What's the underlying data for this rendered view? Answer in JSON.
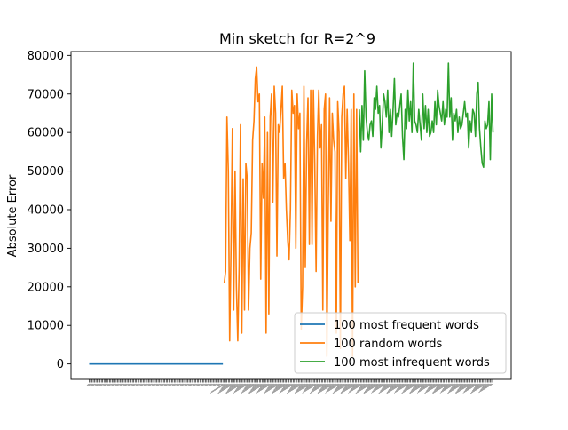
{
  "chart_data": {
    "type": "line",
    "title": "Min sketch for R=2^9",
    "xlabel": "",
    "ylabel": "Absolute Error",
    "ylim": [
      -4000,
      81000
    ],
    "yticks": [
      0,
      10000,
      20000,
      30000,
      40000,
      50000,
      60000,
      70000,
      80000
    ],
    "ytick_labels": [
      "0",
      "10000",
      "20000",
      "30000",
      "40000",
      "50000",
      "60000",
      "70000",
      "80000"
    ],
    "x_tick_labels_legible": false,
    "grid": false,
    "legend_position": "lower-right",
    "series": [
      {
        "name": "100 most frequent words",
        "color": "#1f77b4",
        "x_start": 0,
        "values": [
          0,
          0,
          0,
          0,
          0,
          0,
          0,
          0,
          0,
          0,
          0,
          0,
          0,
          0,
          0,
          0,
          0,
          0,
          0,
          0,
          0,
          0,
          0,
          0,
          0,
          0,
          0,
          0,
          0,
          0,
          0,
          0,
          0,
          0,
          0,
          0,
          0,
          0,
          0,
          0,
          0,
          0,
          0,
          0,
          0,
          0,
          0,
          0,
          0,
          0,
          0,
          0,
          0,
          0,
          0,
          0,
          0,
          0,
          0,
          0,
          0,
          0,
          0,
          0,
          0,
          0,
          0,
          0,
          0,
          0,
          0,
          0,
          0,
          0,
          0,
          0,
          0,
          0,
          0,
          0,
          0,
          0,
          0,
          0,
          0,
          0,
          0,
          0,
          0,
          0,
          0,
          0,
          0,
          0,
          0,
          0,
          0,
          0,
          0,
          0
        ]
      },
      {
        "name": "100 random words",
        "color": "#ff7f0e",
        "x_start": 100,
        "values": [
          21000,
          24000,
          64000,
          50000,
          6000,
          30000,
          61000,
          14000,
          50000,
          20000,
          6000,
          25000,
          62000,
          8000,
          48000,
          14000,
          52000,
          48000,
          14000,
          30000,
          34000,
          58000,
          63000,
          74000,
          77000,
          68000,
          70000,
          22000,
          52000,
          43000,
          64000,
          8000,
          60000,
          13000,
          64000,
          70000,
          42000,
          72000,
          65000,
          28000,
          62000,
          60000,
          66000,
          72000,
          48000,
          52000,
          40000,
          32000,
          27000,
          40000,
          71000,
          65000,
          67000,
          30000,
          70000,
          61000,
          65000,
          9000,
          20000,
          72000,
          25000,
          57000,
          69000,
          31000,
          71000,
          31000,
          71000,
          52000,
          24000,
          59000,
          71000,
          56000,
          62000,
          14000,
          66000,
          70000,
          2000,
          40000,
          69000,
          37000,
          65000,
          58000,
          55000,
          8000,
          68000,
          60000,
          4000,
          64000,
          70000,
          72000,
          48000,
          66000,
          52000,
          32000,
          66000,
          2000,
          70000,
          20000,
          66000,
          21000
        ]
      },
      {
        "name": "100 most infrequent words",
        "color": "#2ca02c",
        "x_start": 200,
        "values": [
          66000,
          55000,
          67000,
          58000,
          76000,
          64000,
          60000,
          58000,
          62000,
          63000,
          59000,
          69000,
          66000,
          72000,
          65000,
          67000,
          56000,
          62000,
          70000,
          68000,
          64000,
          71000,
          60000,
          66000,
          59000,
          66000,
          74000,
          62000,
          65000,
          64000,
          67000,
          70000,
          59000,
          53000,
          66000,
          61000,
          71000,
          63000,
          68000,
          60000,
          78000,
          63000,
          62000,
          60000,
          66000,
          62000,
          58000,
          70000,
          61000,
          67000,
          60000,
          66000,
          59000,
          60000,
          63000,
          60000,
          68000,
          62000,
          71000,
          67000,
          65000,
          63000,
          68000,
          62000,
          66000,
          64000,
          78000,
          64000,
          69000,
          58000,
          65000,
          63000,
          66000,
          60000,
          64000,
          61000,
          62000,
          65000,
          68000,
          64000,
          65000,
          56000,
          63000,
          60000,
          66000,
          65000,
          59000,
          70000,
          73000,
          61000,
          56000,
          52000,
          51000,
          63000,
          61000,
          62000,
          68000,
          53000,
          70000,
          60000
        ]
      }
    ]
  }
}
